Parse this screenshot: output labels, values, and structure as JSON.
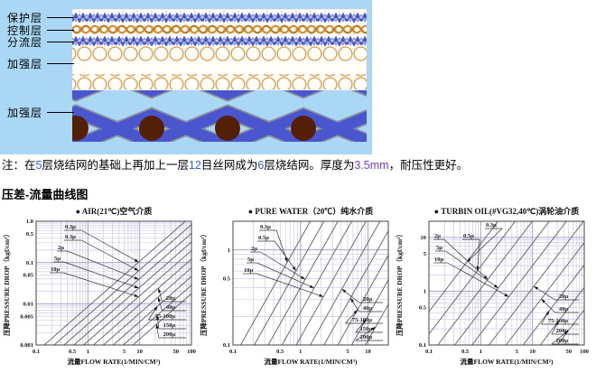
{
  "page": {
    "background": "#ffffff"
  },
  "diagram": {
    "background_color": "#a9d7f4",
    "labels": [
      "保护层",
      "控制层",
      "分流层",
      "加强层",
      "加强层"
    ],
    "layer_colors": {
      "mesh_blue": "#4c58c8",
      "weave_orange": "#d4913a",
      "circle_ring_orange": "#dda25c",
      "x_weave_blue": "#4956cd",
      "node_brown": "#531f06",
      "panel_white": "#fffdf6"
    }
  },
  "note": {
    "segments": [
      {
        "text": "注：在",
        "color": "#000000"
      },
      {
        "text": "5",
        "color": "#2e5bea"
      },
      {
        "text": "层烧结网的基础上再加上一层",
        "color": "#000000"
      },
      {
        "text": "12",
        "color": "#2e5bea"
      },
      {
        "text": "目丝网成为",
        "color": "#000000"
      },
      {
        "text": "6",
        "color": "#2e5bea"
      },
      {
        "text": "层烧结网。厚度为",
        "color": "#000000"
      },
      {
        "text": "3.5mm",
        "color": "#7a3bd6"
      },
      {
        "text": "，耐压性更好。",
        "color": "#000000"
      }
    ]
  },
  "section_title": "压差-流量曲线图",
  "chart_data": [
    {
      "type": "line",
      "medium": "air",
      "title": "● AIR(21℃)空气介质",
      "xlabel": "流量FLOW RATE(1/MIN/CM²)",
      "ylabel": "压降PRESSURE DROP（kgf/cm²）",
      "x_scale": "log",
      "y_scale": "log",
      "xlim": [
        0.1,
        100
      ],
      "ylim": [
        0.001,
        1.0
      ],
      "x_tick_labels": [
        "0.1",
        "0.5",
        "1",
        "5",
        "10",
        "50",
        "100"
      ],
      "y_tick_labels": [
        "1.0",
        "0.5",
        "0.1",
        "0.05",
        "0.01",
        "0.005",
        "0.001"
      ],
      "grid": true,
      "legend_position": "inline-leaders",
      "ref_pressure_drop": 0.01,
      "loglog_slope": 1.1,
      "series": [
        {
          "name": "0.3μ",
          "q_at_ref": 1.16
        },
        {
          "name": "0.3μ",
          "q_at_ref": 1.8
        },
        {
          "name": "2μ",
          "q_at_ref": 2.8
        },
        {
          "name": "5μ",
          "q_at_ref": 4.35
        },
        {
          "name": "10μ",
          "q_at_ref": 6.7
        },
        {
          "name": "20μ",
          "q_at_ref": 10.4
        },
        {
          "name": "40μ",
          "q_at_ref": 16.2
        },
        {
          "name": "75-100μ",
          "q_at_ref": 25
        },
        {
          "name": "150μ",
          "q_at_ref": 39
        },
        {
          "name": "200μ",
          "q_at_ref": 60
        }
      ]
    },
    {
      "type": "line",
      "medium": "pure water",
      "title": "● PURE WATER（20℃）纯水介质",
      "xlabel": "流量FLOW RATE(1/MIN/CM²)",
      "ylabel": "压降PRESSURE DROP（kgf/cm²）",
      "x_scale": "log",
      "y_scale": "log",
      "xlim": [
        0.1,
        20
      ],
      "ylim": [
        0.1,
        2
      ],
      "x_tick_labels": [
        "0.1",
        "0.5",
        "1",
        "5",
        "10"
      ],
      "y_tick_labels": [
        "1",
        "0.5",
        "0.1"
      ],
      "grid": true,
      "legend_position": "inline-leaders",
      "ref_pressure_drop": 0.4,
      "loglog_slope": 1.26,
      "series": [
        {
          "name": "0.3μ",
          "q_at_ref": 0.39
        },
        {
          "name": "0.5μ",
          "q_at_ref": 0.62
        },
        {
          "name": "2μ",
          "q_at_ref": 1.0
        },
        {
          "name": "5μ",
          "q_at_ref": 1.6
        },
        {
          "name": "10μ",
          "q_at_ref": 2.6
        },
        {
          "name": "20μ",
          "q_at_ref": 4.2
        },
        {
          "name": "40μ",
          "q_at_ref": 6.7
        },
        {
          "name": "75-100μ",
          "q_at_ref": 10.7
        },
        {
          "name": "150μ",
          "q_at_ref": 17.2
        },
        {
          "name": "200μ",
          "q_at_ref": 27.6
        }
      ]
    },
    {
      "type": "line",
      "medium": "turbine oil",
      "title": "● TURBIN OIL(#VG32,40℃)涡轮油介质",
      "xlabel": "流量FLOW RATE(1/MIN/CM²)",
      "ylabel": "压降PRESSURE DROP（kgf/cm²）",
      "x_scale": "log",
      "y_scale": "log",
      "xlim": [
        0.1,
        100
      ],
      "ylim": [
        0.1,
        20
      ],
      "x_tick_labels": [
        "0.1",
        "0.5",
        "1",
        "5",
        "10",
        "50",
        "100"
      ],
      "y_tick_labels": [
        "10",
        "5",
        "1",
        "0.5",
        "0.1"
      ],
      "grid": true,
      "legend_position": "inline-leaders",
      "ref_pressure_drop": 1.0,
      "loglog_slope": 1.26,
      "series": [
        {
          "name": "0.3μ",
          "q_at_ref": 0.2
        },
        {
          "name": "0.5μ",
          "q_at_ref": 0.43
        },
        {
          "name": "2μ",
          "q_at_ref": 0.92
        },
        {
          "name": "5μ",
          "q_at_ref": 1.96
        },
        {
          "name": "10μ",
          "q_at_ref": 4.2
        },
        {
          "name": "20μ",
          "q_at_ref": 9.0
        },
        {
          "name": "40μ",
          "q_at_ref": 19.2
        },
        {
          "name": "75-100μ",
          "q_at_ref": 41
        },
        {
          "name": "200μ",
          "q_at_ref": 88
        },
        {
          "name": "200μ",
          "q_at_ref": 188
        }
      ]
    }
  ]
}
